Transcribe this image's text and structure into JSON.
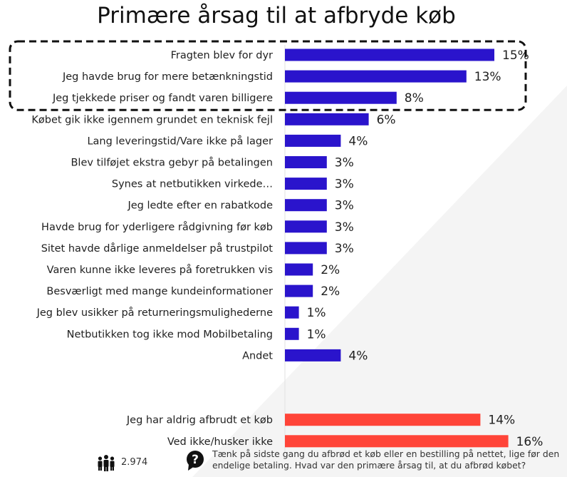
{
  "title": "Primære årsag til at afbryde køb",
  "chart_data": {
    "type": "bar",
    "orientation": "horizontal",
    "title": "Primære årsag til at afbryde køb",
    "categories": [
      "Fragten blev for dyr",
      "Jeg havde brug for mere betænkningstid",
      "Jeg tjekkede priser og fandt varen billigere",
      "Købet gik ikke igennem grundet en teknisk fejl",
      "Lang leveringstid/Vare ikke på lager",
      "Blev tilføjet ekstra gebyr på betalingen",
      "Synes at netbutikken virkede…",
      "Jeg ledte efter en rabatkode",
      "Havde brug for yderligere rådgivning før køb",
      "Sitet havde dårlige anmeldelser på trustpilot",
      "Varen kunne ikke leveres på foretrukken vis",
      "Besværligt med mange kundeinformationer",
      "Jeg blev usikker på returneringsmulighederne",
      "Netbutikken tog ikke mod Mobilbetaling",
      "Andet",
      "Jeg har aldrig afbrudt et køb",
      "Ved ikke/husker ikke"
    ],
    "values": [
      15,
      13,
      8,
      6,
      4,
      3,
      3,
      3,
      3,
      3,
      2,
      2,
      1,
      1,
      4,
      14,
      16
    ],
    "value_labels": [
      "15%",
      "13%",
      "8%",
      "6%",
      "4%",
      "3%",
      "3%",
      "3%",
      "3%",
      "3%",
      "2%",
      "2%",
      "1%",
      "1%",
      "4%",
      "14%",
      "16%"
    ],
    "unit": "%",
    "highlighted_top": 3,
    "colors": {
      "main": "#2a14cc",
      "other": "#ff4438"
    },
    "xlim": [
      0,
      18
    ],
    "grid": false,
    "legend": "none"
  },
  "footer": {
    "respondent_count": "2.974",
    "question": "Tænk på sidste gang du afbrød et køb eller en bestilling på nettet, lige før den endelige betaling. Hvad var den primære årsag til, at du afbrød købet?"
  },
  "icons": [
    "people-icon",
    "question-icon"
  ]
}
